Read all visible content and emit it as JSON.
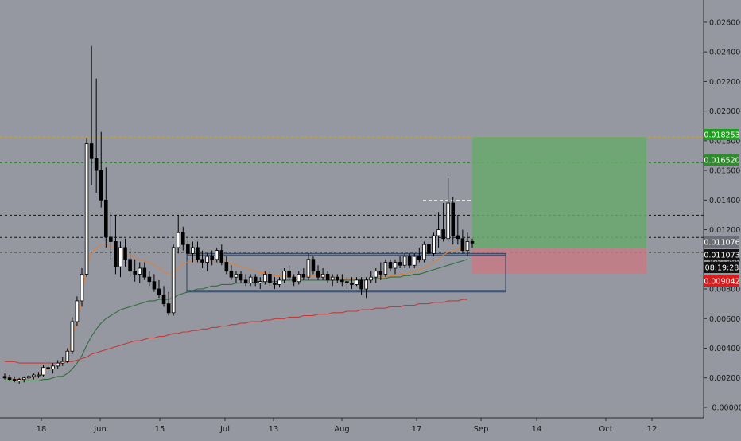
{
  "chart_data": {
    "type": "candlestick",
    "x_axis_labels": [
      "18",
      "Jun",
      "15",
      "Jul",
      "13",
      "Aug",
      "17",
      "Sep",
      "14",
      "Oct",
      "12"
    ],
    "y_ticks": [
      -0.0,
      0.002,
      0.004,
      0.006,
      0.008,
      0.01,
      0.012,
      0.014,
      0.016,
      0.018,
      0.02,
      0.022,
      0.024,
      0.026
    ],
    "y_tick_labels": [
      "-0.000000",
      "0.002000",
      "0.004000",
      "0.006000",
      "0.008000",
      "0.010000",
      "0.012000",
      "0.014000",
      "0.016000",
      "0.018000",
      "0.020000",
      "0.022000",
      "0.024000",
      "0.026000"
    ],
    "ylim": [
      -0.0007,
      0.0275
    ],
    "price_badges": [
      {
        "label": "0.018253",
        "value": 0.018253,
        "color": "#1e9e1e",
        "text_color": "#ffffff"
      },
      {
        "label": "0.016520",
        "value": 0.01652,
        "color": "#2f8c2a",
        "text_color": "#ffffff"
      },
      {
        "label": "0.011076",
        "value": 0.011076,
        "color": "#6b6e75",
        "text_color": "#ffffff"
      },
      {
        "label": "0.011073",
        "value": 0.011073,
        "color": "#111111",
        "text_color": "#ffffff"
      },
      {
        "label": "08:19:28",
        "value": 0.01001,
        "color": "#111111",
        "text_color": "#ffffff"
      },
      {
        "label": "0.009042",
        "value": 0.009042,
        "color": "#e01a1a",
        "text_color": "#ffffff"
      }
    ],
    "horizontal_lines": [
      {
        "value": 0.018253,
        "style": "dashed",
        "color": "#c9a227"
      },
      {
        "value": 0.01652,
        "style": "dashed",
        "color": "#2d7a2d"
      },
      {
        "value": 0.01298,
        "style": "dashed",
        "color": "#111111"
      },
      {
        "value": 0.01148,
        "style": "dashed",
        "color": "#111111"
      },
      {
        "value": 0.01048,
        "style": "dashed",
        "color": "#111111"
      }
    ],
    "candles": [
      [
        0.0021,
        0.0023,
        0.0019,
        0.002
      ],
      [
        0.002,
        0.0022,
        0.0018,
        0.0019
      ],
      [
        0.0019,
        0.0021,
        0.0017,
        0.0018
      ],
      [
        0.0018,
        0.002,
        0.0016,
        0.0019
      ],
      [
        0.0019,
        0.0021,
        0.0017,
        0.002
      ],
      [
        0.002,
        0.0022,
        0.0018,
        0.0021
      ],
      [
        0.0021,
        0.0023,
        0.0019,
        0.0022
      ],
      [
        0.0022,
        0.0024,
        0.002,
        0.0022
      ],
      [
        0.0022,
        0.0029,
        0.0021,
        0.0027
      ],
      [
        0.0027,
        0.0031,
        0.0024,
        0.0026
      ],
      [
        0.0026,
        0.003,
        0.0023,
        0.0028
      ],
      [
        0.0028,
        0.0032,
        0.0026,
        0.003
      ],
      [
        0.003,
        0.0034,
        0.0028,
        0.0031
      ],
      [
        0.0031,
        0.004,
        0.003,
        0.0038
      ],
      [
        0.0038,
        0.0061,
        0.0036,
        0.0058
      ],
      [
        0.0058,
        0.0075,
        0.0055,
        0.0072
      ],
      [
        0.0072,
        0.0094,
        0.0068,
        0.009
      ],
      [
        0.009,
        0.0182,
        0.0088,
        0.0178
      ],
      [
        0.0178,
        0.0244,
        0.015,
        0.0168
      ],
      [
        0.0168,
        0.0222,
        0.0145,
        0.016
      ],
      [
        0.016,
        0.0186,
        0.0135,
        0.014
      ],
      [
        0.014,
        0.0162,
        0.0108,
        0.0115
      ],
      [
        0.0115,
        0.0132,
        0.01,
        0.0112
      ],
      [
        0.0112,
        0.013,
        0.009,
        0.0095
      ],
      [
        0.0095,
        0.0112,
        0.0088,
        0.0108
      ],
      [
        0.0108,
        0.0114,
        0.0095,
        0.01
      ],
      [
        0.01,
        0.0108,
        0.0088,
        0.0092
      ],
      [
        0.0092,
        0.01,
        0.0085,
        0.009
      ],
      [
        0.009,
        0.0098,
        0.0084,
        0.0094
      ],
      [
        0.0094,
        0.0098,
        0.0086,
        0.0088
      ],
      [
        0.0088,
        0.0092,
        0.0082,
        0.0085
      ],
      [
        0.0085,
        0.009,
        0.0078,
        0.008
      ],
      [
        0.008,
        0.0086,
        0.0074,
        0.0076
      ],
      [
        0.0076,
        0.0082,
        0.0068,
        0.007
      ],
      [
        0.007,
        0.0078,
        0.0062,
        0.0064
      ],
      [
        0.0064,
        0.011,
        0.0062,
        0.0108
      ],
      [
        0.0108,
        0.013,
        0.0104,
        0.0118
      ],
      [
        0.0118,
        0.0122,
        0.0106,
        0.011
      ],
      [
        0.011,
        0.0114,
        0.01,
        0.0104
      ],
      [
        0.0104,
        0.0112,
        0.0098,
        0.0108
      ],
      [
        0.0108,
        0.0112,
        0.0098,
        0.01
      ],
      [
        0.01,
        0.0106,
        0.0094,
        0.0098
      ],
      [
        0.0098,
        0.0104,
        0.0092,
        0.0102
      ],
      [
        0.0102,
        0.0106,
        0.0096,
        0.01
      ],
      [
        0.01,
        0.0108,
        0.0098,
        0.0106
      ],
      [
        0.0106,
        0.011,
        0.0096,
        0.0098
      ],
      [
        0.0098,
        0.0102,
        0.009,
        0.0092
      ],
      [
        0.0092,
        0.0096,
        0.0086,
        0.0088
      ],
      [
        0.0088,
        0.0092,
        0.0084,
        0.009
      ],
      [
        0.009,
        0.0092,
        0.0084,
        0.0086
      ],
      [
        0.0086,
        0.009,
        0.0082,
        0.0084
      ],
      [
        0.0084,
        0.009,
        0.0082,
        0.0088
      ],
      [
        0.0088,
        0.009,
        0.0082,
        0.0084
      ],
      [
        0.0084,
        0.0088,
        0.008,
        0.0085
      ],
      [
        0.0085,
        0.0092,
        0.0083,
        0.009
      ],
      [
        0.009,
        0.0092,
        0.0082,
        0.0084
      ],
      [
        0.0084,
        0.0088,
        0.008,
        0.0083
      ],
      [
        0.0083,
        0.0088,
        0.0081,
        0.0086
      ],
      [
        0.0086,
        0.0094,
        0.0084,
        0.0092
      ],
      [
        0.0092,
        0.0096,
        0.0086,
        0.0088
      ],
      [
        0.0088,
        0.009,
        0.0082,
        0.0085
      ],
      [
        0.0085,
        0.0092,
        0.0083,
        0.009
      ],
      [
        0.009,
        0.0094,
        0.0086,
        0.0088
      ],
      [
        0.0088,
        0.0104,
        0.0086,
        0.01
      ],
      [
        0.01,
        0.0102,
        0.009,
        0.0092
      ],
      [
        0.0092,
        0.0096,
        0.0086,
        0.0088
      ],
      [
        0.0088,
        0.0094,
        0.0086,
        0.009
      ],
      [
        0.009,
        0.0092,
        0.0084,
        0.0086
      ],
      [
        0.0086,
        0.009,
        0.0082,
        0.0088
      ],
      [
        0.0088,
        0.009,
        0.0084,
        0.0086
      ],
      [
        0.0086,
        0.009,
        0.0082,
        0.0085
      ],
      [
        0.0085,
        0.0088,
        0.008,
        0.0084
      ],
      [
        0.0084,
        0.0088,
        0.008,
        0.0083
      ],
      [
        0.0083,
        0.0088,
        0.0082,
        0.0086
      ],
      [
        0.0086,
        0.0088,
        0.0076,
        0.008
      ],
      [
        0.008,
        0.0088,
        0.0074,
        0.0086
      ],
      [
        0.0086,
        0.0092,
        0.0084,
        0.0088
      ],
      [
        0.0088,
        0.0094,
        0.0084,
        0.0092
      ],
      [
        0.0092,
        0.0098,
        0.0086,
        0.009
      ],
      [
        0.009,
        0.01,
        0.0088,
        0.0098
      ],
      [
        0.0098,
        0.01,
        0.0092,
        0.0094
      ],
      [
        0.0094,
        0.01,
        0.009,
        0.0098
      ],
      [
        0.0098,
        0.0102,
        0.0094,
        0.0096
      ],
      [
        0.0096,
        0.0104,
        0.0094,
        0.0102
      ],
      [
        0.0102,
        0.0104,
        0.0094,
        0.0096
      ],
      [
        0.0096,
        0.0104,
        0.0094,
        0.0102
      ],
      [
        0.0102,
        0.0108,
        0.0098,
        0.01
      ],
      [
        0.01,
        0.0112,
        0.0098,
        0.011
      ],
      [
        0.011,
        0.0112,
        0.0102,
        0.0104
      ],
      [
        0.0104,
        0.0118,
        0.0102,
        0.0116
      ],
      [
        0.0116,
        0.0132,
        0.0108,
        0.012
      ],
      [
        0.012,
        0.0138,
        0.0112,
        0.0114
      ],
      [
        0.0114,
        0.0155,
        0.0112,
        0.0138
      ],
      [
        0.0138,
        0.0142,
        0.011,
        0.0116
      ],
      [
        0.0116,
        0.013,
        0.011,
        0.0114
      ],
      [
        0.0114,
        0.012,
        0.0104,
        0.0106
      ],
      [
        0.0106,
        0.0118,
        0.0102,
        0.0112
      ],
      [
        0.0112,
        0.0114,
        0.0108,
        0.0111
      ]
    ],
    "moving_averages": [
      {
        "color": "#d9823e",
        "values": [
          0.0021,
          0.002,
          0.0019,
          0.0019,
          0.0019,
          0.002,
          0.0021,
          0.0022,
          0.0025,
          0.0026,
          0.0027,
          0.0029,
          0.003,
          0.0034,
          0.0046,
          0.0058,
          0.0074,
          0.0096,
          0.0104,
          0.0108,
          0.011,
          0.011,
          0.0109,
          0.0107,
          0.0106,
          0.0104,
          0.0103,
          0.0101,
          0.01,
          0.0099,
          0.0098,
          0.0096,
          0.0094,
          0.0092,
          0.009,
          0.0091,
          0.0094,
          0.0097,
          0.0098,
          0.0099,
          0.0099,
          0.0099,
          0.0099,
          0.0099,
          0.0099,
          0.0099,
          0.0098,
          0.0097,
          0.0096,
          0.0095,
          0.0094,
          0.0093,
          0.0092,
          0.0091,
          0.0091,
          0.009,
          0.0089,
          0.0089,
          0.0089,
          0.0089,
          0.0088,
          0.0088,
          0.0088,
          0.0089,
          0.0089,
          0.0089,
          0.0089,
          0.0088,
          0.0088,
          0.0088,
          0.0087,
          0.0087,
          0.0087,
          0.0086,
          0.0086,
          0.0086,
          0.0087,
          0.0087,
          0.0088,
          0.0088,
          0.0089,
          0.0089,
          0.009,
          0.009,
          0.0091,
          0.0092,
          0.0093,
          0.0094,
          0.0096,
          0.0098,
          0.01,
          0.0103,
          0.0105,
          0.0106,
          0.0107,
          0.0108,
          0.0109
        ]
      },
      {
        "color": "#2f6e3c",
        "values": [
          0.0018,
          0.0018,
          0.0018,
          0.0018,
          0.0018,
          0.0018,
          0.0018,
          0.0018,
          0.0019,
          0.0019,
          0.002,
          0.0021,
          0.0021,
          0.0023,
          0.0026,
          0.003,
          0.0035,
          0.0042,
          0.0048,
          0.0053,
          0.0057,
          0.006,
          0.0062,
          0.0064,
          0.0066,
          0.0067,
          0.0068,
          0.0069,
          0.007,
          0.0071,
          0.0072,
          0.0072,
          0.0073,
          0.0073,
          0.0073,
          0.0074,
          0.0076,
          0.0077,
          0.0078,
          0.0079,
          0.008,
          0.008,
          0.0081,
          0.0082,
          0.0082,
          0.0083,
          0.0083,
          0.0083,
          0.0084,
          0.0084,
          0.0084,
          0.0084,
          0.0085,
          0.0085,
          0.0085,
          0.0085,
          0.0085,
          0.0085,
          0.0086,
          0.0086,
          0.0086,
          0.0086,
          0.0086,
          0.0086,
          0.0086,
          0.0086,
          0.0086,
          0.0086,
          0.0086,
          0.0086,
          0.0086,
          0.0086,
          0.0086,
          0.0086,
          0.0086,
          0.0086,
          0.0087,
          0.0087,
          0.0087,
          0.0087,
          0.0088,
          0.0088,
          0.0088,
          0.0089,
          0.0089,
          0.009,
          0.009,
          0.0091,
          0.0092,
          0.0093,
          0.0094,
          0.0095,
          0.0096,
          0.0097,
          0.0098,
          0.0099,
          0.01
        ]
      },
      {
        "color": "#c23a3a",
        "values": [
          0.0031,
          0.0031,
          0.0031,
          0.003,
          0.003,
          0.003,
          0.003,
          0.003,
          0.003,
          0.003,
          0.003,
          0.003,
          0.003,
          0.0031,
          0.0031,
          0.0032,
          0.0033,
          0.0034,
          0.0036,
          0.0037,
          0.0038,
          0.0039,
          0.004,
          0.0041,
          0.0042,
          0.0043,
          0.0044,
          0.0045,
          0.0045,
          0.0046,
          0.0047,
          0.0047,
          0.0048,
          0.0048,
          0.0049,
          0.005,
          0.005,
          0.0051,
          0.0051,
          0.0052,
          0.0052,
          0.0053,
          0.0053,
          0.0054,
          0.0054,
          0.0055,
          0.0055,
          0.0056,
          0.0056,
          0.0057,
          0.0057,
          0.0058,
          0.0058,
          0.0058,
          0.0059,
          0.0059,
          0.006,
          0.006,
          0.006,
          0.0061,
          0.0061,
          0.0061,
          0.0062,
          0.0062,
          0.0062,
          0.0063,
          0.0063,
          0.0063,
          0.0064,
          0.0064,
          0.0064,
          0.0065,
          0.0065,
          0.0065,
          0.0066,
          0.0066,
          0.0066,
          0.0067,
          0.0067,
          0.0067,
          0.0068,
          0.0068,
          0.0068,
          0.0069,
          0.0069,
          0.0069,
          0.007,
          0.007,
          0.007,
          0.0071,
          0.0071,
          0.0071,
          0.0072,
          0.0072,
          0.0072,
          0.0073,
          0.0073
        ]
      }
    ],
    "position_tool": {
      "entry": 0.01073,
      "target": 0.018253,
      "stop": 0.009042,
      "profit_color": "#6aa86f",
      "loss_color": "#c77a85"
    },
    "range_box": {
      "top": 0.0103,
      "bottom": 0.0079,
      "color": "#2a3f5f"
    },
    "secondary_box": {
      "top": 0.0104,
      "bottom": 0.0078,
      "color": "#2a3f5f"
    },
    "grid": false
  }
}
